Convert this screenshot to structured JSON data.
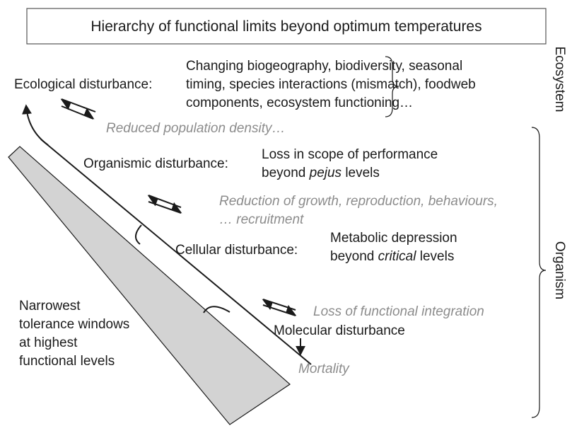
{
  "title": "Hierarchy of functional limits beyond optimum temperatures",
  "levels": [
    {
      "label": "Ecological disturbance:",
      "description": [
        [
          "Changing biogeography, biodiversity, seasonal"
        ],
        [
          "timing, species interactions (mismatch), foodweb"
        ],
        [
          "components, ecosystem functioning…"
        ]
      ]
    },
    {
      "label": "Organismic disturbance:",
      "description": [
        [
          "Loss in scope of performance"
        ],
        [
          "beyond ",
          "pejus",
          " levels"
        ]
      ]
    },
    {
      "label": "Cellular disturbance:",
      "description": [
        [
          "Metabolic depression"
        ],
        [
          "beyond ",
          "critical",
          " levels"
        ]
      ]
    },
    {
      "label": "Molecular disturbance"
    }
  ],
  "consequences": [
    [
      "Reduced population density…"
    ],
    [
      "Reduction of growth, reproduction, behaviours,",
      "… recruitment"
    ],
    [
      "Loss of functional integration"
    ],
    [
      "Mortality"
    ]
  ],
  "tolerance_note": [
    "Narrowest",
    "tolerance windows",
    "at highest",
    "functional levels"
  ],
  "scales": [
    "Ecosystem",
    "Organism"
  ]
}
